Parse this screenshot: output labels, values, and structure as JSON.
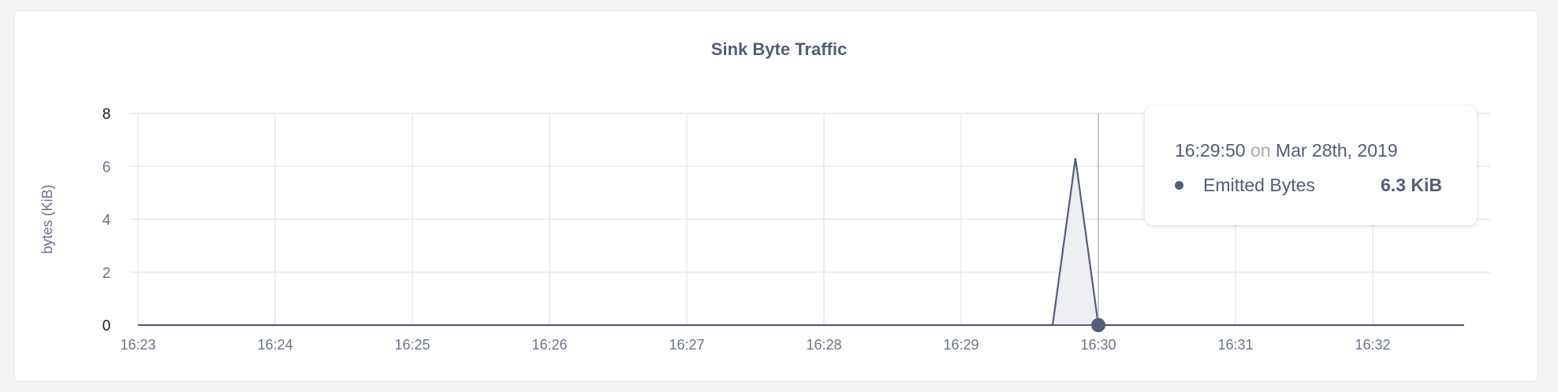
{
  "chart_data": {
    "type": "area",
    "title": "Sink Byte Traffic",
    "ylabel": "bytes (KiB)",
    "xlabel": "",
    "ylim": [
      0,
      8
    ],
    "yticks": [
      "0",
      "2",
      "4",
      "6",
      "8"
    ],
    "xticks": [
      "16:23",
      "16:24",
      "16:25",
      "16:26",
      "16:27",
      "16:28",
      "16:29",
      "16:30",
      "16:31",
      "16:32"
    ],
    "grid": true,
    "series": [
      {
        "name": "Emitted Bytes",
        "color": "#535d78",
        "fill": "#eceef2",
        "x": [
          "16:23:00",
          "16:29:40",
          "16:29:50",
          "16:30:00",
          "16:32:40"
        ],
        "y": [
          0,
          0,
          6.3,
          0,
          0
        ]
      }
    ],
    "hover_x": "16:30:00"
  },
  "tooltip": {
    "time": "16:29:50",
    "on": "on",
    "date": "Mar 28th, 2019",
    "series_name": "Emitted Bytes",
    "value": "6.3 KiB"
  },
  "colors": {
    "primary": "#535d78",
    "grid": "#e8e8e8",
    "hover_line": "#bbbbbb"
  }
}
